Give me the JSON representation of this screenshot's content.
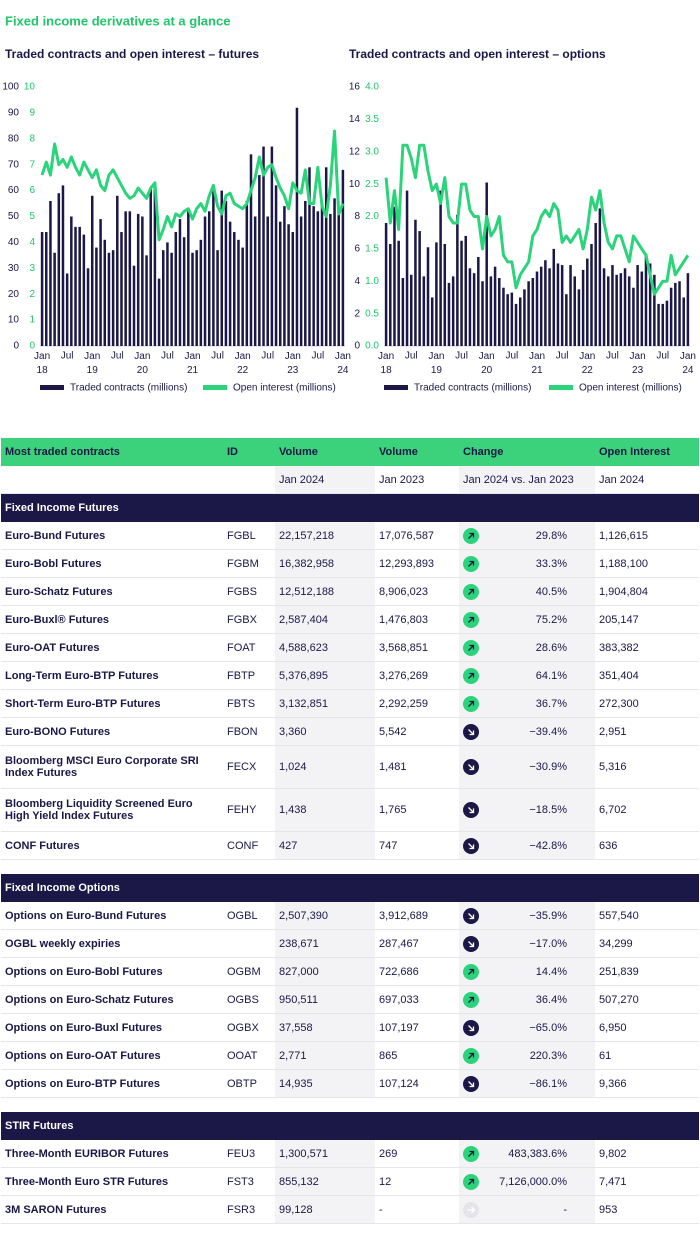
{
  "title": "Fixed income derivatives at a glance",
  "chart_data": [
    {
      "type": "combo",
      "title": "Traded contracts and open interest – futures",
      "categories": [
        "Jan 18",
        null,
        null,
        null,
        null,
        null,
        "Jul",
        null,
        null,
        null,
        null,
        null,
        "Jan 19",
        null,
        null,
        null,
        null,
        null,
        "Jul",
        null,
        null,
        null,
        null,
        null,
        "Jan 20",
        null,
        null,
        null,
        null,
        null,
        "Jul",
        null,
        null,
        null,
        null,
        null,
        "Jan 21",
        null,
        null,
        null,
        null,
        null,
        "Jul",
        null,
        null,
        null,
        null,
        null,
        "Jan 22",
        null,
        null,
        null,
        null,
        null,
        "Jul",
        null,
        null,
        null,
        null,
        null,
        "Jan 23",
        null,
        null,
        null,
        null,
        null,
        "Jul",
        null,
        null,
        null,
        null,
        null,
        "Jan 24"
      ],
      "series": [
        {
          "name": "Traded contracts (millions)",
          "type": "bar",
          "color": "#1b1747",
          "values": [
            44,
            44,
            56,
            36,
            59,
            62,
            28,
            50,
            46,
            46,
            43,
            30,
            58,
            38,
            49,
            41,
            36,
            37,
            58,
            44,
            52,
            52,
            31,
            51,
            50,
            35,
            61,
            63,
            26,
            37,
            40,
            36,
            44,
            49,
            42,
            52,
            36,
            37,
            41,
            50,
            52,
            61,
            37,
            60,
            56,
            48,
            44,
            41,
            38,
            56,
            74,
            50,
            66,
            77,
            50,
            77,
            62,
            48,
            54,
            47,
            44,
            92,
            50,
            56,
            69,
            54,
            52,
            55,
            69,
            51,
            57,
            53,
            68
          ]
        },
        {
          "name": "Open interest (millions)",
          "type": "line",
          "axis": "y2",
          "color": "#2bd47a",
          "values": [
            6.6,
            7.1,
            6.6,
            7.8,
            7.0,
            7.2,
            6.9,
            7.3,
            6.9,
            6.6,
            7.1,
            6.8,
            6.5,
            6.8,
            6.2,
            6.0,
            6.6,
            6.8,
            6.5,
            6.2,
            5.9,
            5.7,
            5.8,
            6.1,
            5.9,
            5.7,
            6.1,
            6.3,
            4.1,
            4.5,
            5.0,
            4.6,
            5.1,
            5.0,
            5.2,
            5.3,
            4.9,
            5.3,
            5.5,
            5.2,
            5.8,
            6.2,
            5.4,
            5.1,
            5.8,
            5.9,
            5.5,
            5.4,
            5.3,
            5.5,
            6.0,
            6.5,
            7.3,
            6.6,
            6.9,
            7.0,
            6.5,
            6.1,
            5.8,
            5.3,
            6.3,
            6.0,
            5.9,
            6.8,
            5.5,
            5.5,
            6.9,
            5.4,
            5.0,
            6.2,
            8.3,
            5.1,
            5.5
          ]
        }
      ],
      "ylim": [
        0,
        100
      ],
      "yticks": [
        0,
        10,
        20,
        30,
        40,
        50,
        60,
        70,
        80,
        90,
        100
      ],
      "y2lim": [
        0,
        10
      ],
      "y2ticks": [
        0,
        1,
        2,
        3,
        4,
        5,
        6,
        7,
        8,
        9,
        10
      ]
    },
    {
      "type": "combo",
      "title": "Traded contracts and open interest – options",
      "categories": [
        "Jan 18",
        null,
        null,
        null,
        null,
        null,
        "Jul",
        null,
        null,
        null,
        null,
        null,
        "Jan 19",
        null,
        null,
        null,
        null,
        null,
        "Jul",
        null,
        null,
        null,
        null,
        null,
        "Jan 20",
        null,
        null,
        null,
        null,
        null,
        "Jul",
        null,
        null,
        null,
        null,
        null,
        "Jan 21",
        null,
        null,
        null,
        null,
        null,
        "Jul",
        null,
        null,
        null,
        null,
        null,
        "Jan 22",
        null,
        null,
        null,
        null,
        null,
        "Jul",
        null,
        null,
        null,
        null,
        null,
        "Jan 23",
        null,
        null,
        null,
        null,
        null,
        "Jul",
        null,
        null,
        null,
        null,
        null,
        "Jan 24"
      ],
      "series": [
        {
          "name": "Traded contracts (millions)",
          "type": "bar",
          "color": "#1b1747",
          "values": [
            7.6,
            6.3,
            8.6,
            6.5,
            4.2,
            9.6,
            4.4,
            7.8,
            7.1,
            4.3,
            6.1,
            3.0,
            6.4,
            9.6,
            6.3,
            3.9,
            4.3,
            8.1,
            6.5,
            6.8,
            4.8,
            4.5,
            5.5,
            4.0,
            10.1,
            4.3,
            4.9,
            4.2,
            3.6,
            3.2,
            3.3,
            2.6,
            3.0,
            3.5,
            4.0,
            4.2,
            4.6,
            4.9,
            5.3,
            4.8,
            6.0,
            5.1,
            5.0,
            3.2,
            5.0,
            4.3,
            3.5,
            4.7,
            5.4,
            6.3,
            7.6,
            8.5,
            4.8,
            4.3,
            5.0,
            4.4,
            4.5,
            4.8,
            4.3,
            3.6,
            5.0,
            4.6,
            5.7,
            5.1,
            4.4,
            2.6,
            2.6,
            2.8,
            3.6,
            3.9,
            4.0,
            3.0,
            4.5
          ]
        },
        {
          "name": "Open interest (millions)",
          "type": "line",
          "axis": "y2",
          "color": "#2bd47a",
          "values": [
            2.6,
            1.9,
            2.4,
            1.8,
            3.1,
            3.1,
            2.9,
            2.6,
            3.1,
            3.1,
            2.7,
            2.4,
            2.5,
            2.2,
            2.6,
            2.0,
            1.9,
            1.9,
            2.5,
            2.5,
            2.1,
            2.0,
            2.0,
            1.5,
            2.0,
            1.7,
            1.8,
            2.0,
            1.4,
            1.3,
            1.3,
            0.9,
            1.1,
            1.2,
            1.3,
            1.7,
            1.8,
            2.0,
            2.1,
            2.0,
            2.2,
            2.1,
            1.6,
            1.7,
            1.6,
            1.7,
            1.8,
            1.5,
            1.8,
            2.3,
            2.1,
            2.4,
            1.9,
            1.6,
            1.5,
            1.7,
            1.7,
            1.5,
            1.3,
            1.7,
            1.6,
            1.5,
            1.4,
            1.1,
            0.8,
            0.9,
            1.0,
            1.0,
            1.4,
            1.1,
            1.2,
            1.3,
            1.4
          ]
        }
      ],
      "ylim": [
        0,
        16
      ],
      "yticks": [
        0,
        2,
        4,
        6,
        8,
        10,
        12,
        14,
        16
      ],
      "y2lim": [
        0,
        4
      ],
      "y2ticks": [
        {
          "value": 0,
          "label": "0.0"
        },
        0.5,
        {
          "value": 1,
          "label": "1.0"
        },
        1.5,
        {
          "value": 2,
          "label": "2.0"
        },
        2.5,
        {
          "value": 3,
          "label": "3.0"
        },
        3.5,
        {
          "value": 4,
          "label": "4.0"
        }
      ]
    }
  ],
  "table": {
    "columns": [
      "Most traded contracts",
      "ID",
      "Volume",
      "Volume",
      "Change",
      "Open Interest"
    ],
    "subcolumns": [
      "Jan 2024",
      "Jan 2023",
      "Jan 2024 vs. Jan 2023",
      "Jan 2024"
    ],
    "sections": [
      {
        "title": "Fixed Income Futures",
        "rows": [
          [
            "Euro-Bund Futures",
            "FGBL",
            "22,157,218",
            "17,076,587",
            "29.8%",
            "1,126,615"
          ],
          [
            "Euro-Bobl Futures",
            "FGBM",
            "16,382,958",
            "12,293,893",
            "33.3%",
            "1,188,100"
          ],
          [
            "Euro-Schatz Futures",
            "FGBS",
            "12,512,188",
            "8,906,023",
            "40.5%",
            "1,904,804"
          ],
          [
            "Euro-Buxl® Futures",
            "FGBX",
            "2,587,404",
            "1,476,803",
            "75.2%",
            "205,147"
          ],
          [
            "Euro-OAT Futures",
            "FOAT",
            "4,588,623",
            "3,568,851",
            "28.6%",
            "383,382"
          ],
          [
            "Long-Term Euro-BTP Futures",
            "FBTP",
            "5,376,895",
            "3,276,269",
            "64.1%",
            "351,404"
          ],
          [
            "Short-Term Euro-BTP Futures",
            "FBTS",
            "3,132,851",
            "2,292,259",
            "36.7%",
            "272,300"
          ],
          [
            "Euro-BONO Futures",
            "FBON",
            "3,360",
            "5,542",
            "−39.4%",
            "2,951"
          ],
          [
            "Bloomberg MSCI Euro Corporate SRI Index Futures",
            "FECX",
            "1,024",
            "1,481",
            "−30.9%",
            "5,316"
          ],
          [
            "Bloomberg Liquidity Screened Euro High Yield Index Futures",
            "FEHY",
            "1,438",
            "1,765",
            "−18.5%",
            "6,702"
          ],
          [
            "CONF Futures",
            "CONF",
            "427",
            "747",
            "−42.8%",
            "636"
          ]
        ]
      },
      {
        "title": "Fixed Income Options",
        "rows": [
          [
            "Options on Euro-Bund Futures",
            "OGBL",
            "2,507,390",
            "3,912,689",
            "−35.9%",
            "557,540"
          ],
          [
            "OGBL weekly expiries",
            null,
            "238,671",
            "287,467",
            "−17.0%",
            "34,299"
          ],
          [
            "Options on Euro-Bobl Futures",
            "OGBM",
            "827,000",
            "722,686",
            "14.4%",
            "251,839"
          ],
          [
            "Options on Euro-Schatz Futures",
            "OGBS",
            "950,511",
            "697,033",
            "36.4%",
            "507,270"
          ],
          [
            "Options on Euro-Buxl Futures",
            "OGBX",
            "37,558",
            "107,197",
            "−65.0%",
            "6,950"
          ],
          [
            "Options on Euro-OAT Futures",
            "OOAT",
            "2,771",
            "865",
            "220.3%",
            "61"
          ],
          [
            "Options on Euro-BTP Futures",
            "OBTP",
            "14,935",
            "107,124",
            "−86.1%",
            "9,366"
          ]
        ]
      },
      {
        "title": "STIR Futures",
        "rows": [
          [
            "Three-Month EURIBOR Futures",
            "FEU3",
            "1,300,571",
            "269",
            "483,383.6%",
            "9,802"
          ],
          [
            "Three-Month Euro STR Futures",
            "FST3",
            "855,132",
            "12",
            "7,126,000.0%",
            "7,471"
          ],
          [
            "3M SARON Futures",
            "FSR3",
            "99,128",
            "-",
            "-",
            "953"
          ]
        ]
      }
    ]
  }
}
